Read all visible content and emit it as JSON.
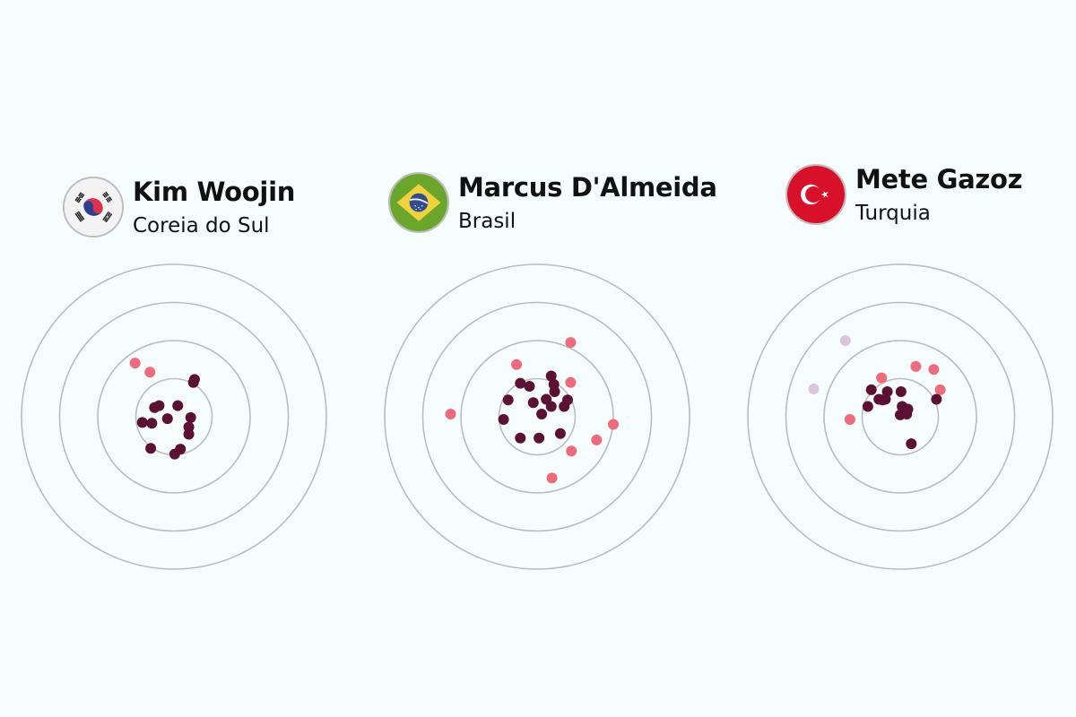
{
  "colors": {
    "ring": "#bcbcbc",
    "inner": "#5c1034",
    "outer": "#ef6b7b",
    "miss": "#dcc3de"
  },
  "panels": [
    {
      "athlete": "Kim Woojin",
      "country": "Coreia do Sul",
      "flag": "south-korea-flag-icon"
    },
    {
      "athlete": "Marcus D'Almeida",
      "country": "Brasil",
      "flag": "brazil-flag-icon"
    },
    {
      "athlete": "Mete Gazoz",
      "country": "Turquia",
      "flag": "turkey-flag-icon"
    }
  ],
  "chart_data": [
    {
      "type": "scatter",
      "title": "Kim Woojin",
      "rings": 4,
      "points": [
        {
          "x": -1.02,
          "y": 1.41,
          "zone": "outer"
        },
        {
          "x": -0.63,
          "y": 1.17,
          "zone": "outer"
        },
        {
          "x": 0.51,
          "y": 0.9,
          "zone": "inner"
        },
        {
          "x": 0.54,
          "y": 0.98,
          "zone": "inner"
        },
        {
          "x": -0.51,
          "y": 0.24,
          "zone": "inner"
        },
        {
          "x": -0.39,
          "y": 0.29,
          "zone": "inner"
        },
        {
          "x": 0.1,
          "y": 0.29,
          "zone": "inner"
        },
        {
          "x": -0.83,
          "y": -0.15,
          "zone": "inner"
        },
        {
          "x": -0.58,
          "y": -0.17,
          "zone": "inner"
        },
        {
          "x": -0.17,
          "y": -0.05,
          "zone": "inner"
        },
        {
          "x": 0.44,
          "y": -0.02,
          "zone": "inner"
        },
        {
          "x": 0.39,
          "y": -0.27,
          "zone": "inner"
        },
        {
          "x": 0.39,
          "y": -0.46,
          "zone": "inner"
        },
        {
          "x": -0.61,
          "y": -0.83,
          "zone": "inner"
        },
        {
          "x": 0.17,
          "y": -0.85,
          "zone": "inner"
        },
        {
          "x": 0.02,
          "y": -0.98,
          "zone": "inner"
        }
      ]
    },
    {
      "type": "scatter",
      "title": "Marcus D'Almeida",
      "rings": 4,
      "points": [
        {
          "x": 0.88,
          "y": 1.95,
          "zone": "outer"
        },
        {
          "x": -0.54,
          "y": 1.37,
          "zone": "outer"
        },
        {
          "x": 0.88,
          "y": 0.9,
          "zone": "outer"
        },
        {
          "x": -2.27,
          "y": 0.07,
          "zone": "outer"
        },
        {
          "x": 2.0,
          "y": -0.2,
          "zone": "outer"
        },
        {
          "x": 1.56,
          "y": -0.61,
          "zone": "outer"
        },
        {
          "x": 0.9,
          "y": -0.9,
          "zone": "outer"
        },
        {
          "x": 0.39,
          "y": -1.61,
          "zone": "outer"
        },
        {
          "x": 0.37,
          "y": 1.07,
          "zone": "inner"
        },
        {
          "x": -0.44,
          "y": 0.88,
          "zone": "inner"
        },
        {
          "x": -0.2,
          "y": 0.8,
          "zone": "inner"
        },
        {
          "x": 0.44,
          "y": 0.85,
          "zone": "inner"
        },
        {
          "x": 0.46,
          "y": 0.66,
          "zone": "inner"
        },
        {
          "x": 0.24,
          "y": 0.46,
          "zone": "inner"
        },
        {
          "x": 0.8,
          "y": 0.44,
          "zone": "inner"
        },
        {
          "x": -0.76,
          "y": 0.44,
          "zone": "inner"
        },
        {
          "x": -0.1,
          "y": 0.37,
          "zone": "inner"
        },
        {
          "x": 0.71,
          "y": 0.27,
          "zone": "inner"
        },
        {
          "x": 0.37,
          "y": 0.27,
          "zone": "inner"
        },
        {
          "x": 0.12,
          "y": 0.07,
          "zone": "inner"
        },
        {
          "x": -0.88,
          "y": -0.07,
          "zone": "inner"
        },
        {
          "x": 0.61,
          "y": -0.44,
          "zone": "inner"
        },
        {
          "x": -0.44,
          "y": -0.56,
          "zone": "inner"
        },
        {
          "x": 0.05,
          "y": -0.56,
          "zone": "inner"
        }
      ]
    },
    {
      "type": "scatter",
      "title": "Mete Gazoz",
      "rings": 4,
      "points": [
        {
          "x": -1.44,
          "y": 2.0,
          "zone": "miss"
        },
        {
          "x": -2.27,
          "y": 0.73,
          "zone": "miss"
        },
        {
          "x": 0.41,
          "y": 1.32,
          "zone": "outer"
        },
        {
          "x": 0.88,
          "y": 1.24,
          "zone": "outer"
        },
        {
          "x": -0.49,
          "y": 1.02,
          "zone": "outer"
        },
        {
          "x": 1.05,
          "y": 0.71,
          "zone": "outer"
        },
        {
          "x": -1.32,
          "y": -0.07,
          "zone": "outer"
        },
        {
          "x": -0.76,
          "y": 0.71,
          "zone": "inner"
        },
        {
          "x": -0.34,
          "y": 0.66,
          "zone": "inner"
        },
        {
          "x": 0.02,
          "y": 0.66,
          "zone": "inner"
        },
        {
          "x": -0.39,
          "y": 0.46,
          "zone": "inner"
        },
        {
          "x": -0.46,
          "y": 0.44,
          "zone": "inner"
        },
        {
          "x": -0.56,
          "y": 0.46,
          "zone": "inner"
        },
        {
          "x": 0.95,
          "y": 0.46,
          "zone": "inner"
        },
        {
          "x": -0.85,
          "y": 0.27,
          "zone": "inner"
        },
        {
          "x": 0.05,
          "y": 0.27,
          "zone": "inner"
        },
        {
          "x": 0.2,
          "y": 0.2,
          "zone": "inner"
        },
        {
          "x": 0.0,
          "y": 0.05,
          "zone": "inner"
        },
        {
          "x": 0.17,
          "y": 0.07,
          "zone": "inner"
        },
        {
          "x": 0.29,
          "y": -0.71,
          "zone": "inner"
        }
      ]
    }
  ]
}
